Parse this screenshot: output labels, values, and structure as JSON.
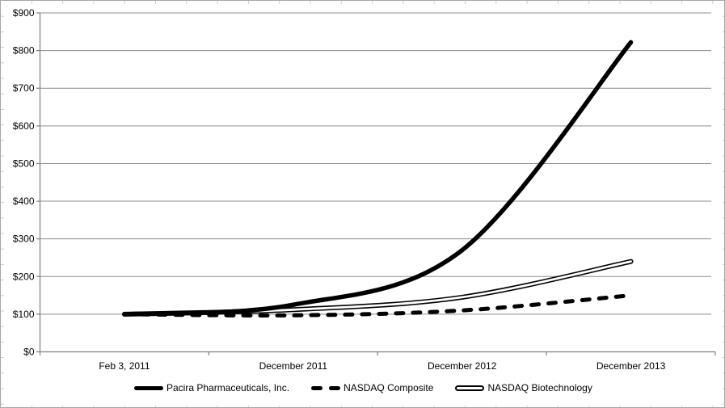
{
  "chart_data": {
    "type": "line",
    "title": "",
    "xlabel": "",
    "ylabel": "",
    "categories": [
      "Feb 3, 2011",
      "December 2011",
      "December 2012",
      "December 2013"
    ],
    "series": [
      {
        "name": "Pacira Pharmaceuticals, Inc.",
        "style": "solid-thick",
        "color": "#000000",
        "values": [
          100,
          125,
          270,
          822
        ]
      },
      {
        "name": "NASDAQ Composite",
        "style": "dashed-thick",
        "color": "#000000",
        "values": [
          100,
          97,
          110,
          150
        ]
      },
      {
        "name": "NASDAQ Biotechnology",
        "style": "double-line",
        "color": "#000000",
        "values": [
          100,
          112,
          145,
          240
        ]
      }
    ],
    "ylim": [
      0,
      900
    ],
    "ytick_step": 100,
    "y_tick_labels": [
      "$0",
      "$100",
      "$200",
      "$300",
      "$400",
      "$500",
      "$600",
      "$700",
      "$800",
      "$900"
    ],
    "grid": true,
    "line_smoothing": true,
    "legend_position": "bottom",
    "colors": {
      "line": "#000000",
      "grid": "#8c8c8c",
      "axis": "#7f7f7f",
      "text": "#000000",
      "background": "#ffffff",
      "frame_border": "#a6a6a6",
      "edge_tick": "#cccccc"
    }
  }
}
